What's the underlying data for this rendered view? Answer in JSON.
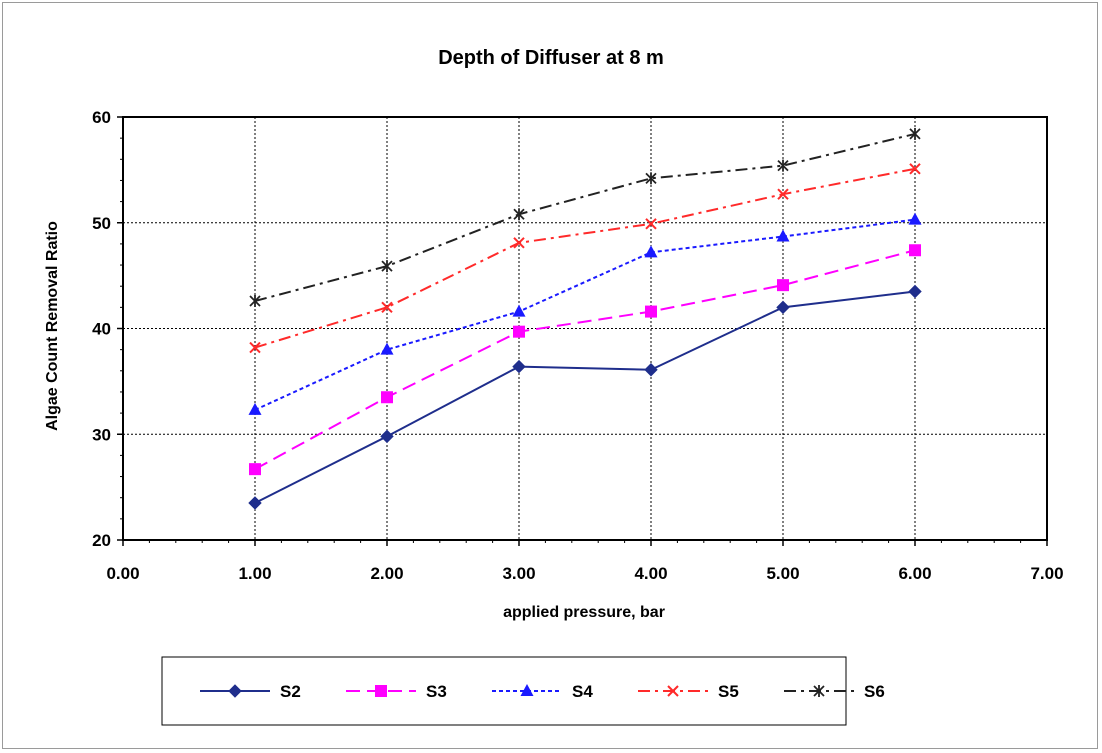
{
  "chart_data": {
    "type": "line",
    "title": "Depth of Diffuser at 8  m",
    "xlabel": "applied pressure, bar",
    "ylabel": "Algae Count Removal Ratio",
    "xlim": [
      0,
      7
    ],
    "ylim": [
      20,
      60
    ],
    "x_ticks": [
      0,
      1,
      2,
      3,
      4,
      5,
      6,
      7
    ],
    "x_tick_labels": [
      "0.00",
      "1.00",
      "2.00",
      "3.00",
      "4.00",
      "5.00",
      "6.00",
      "7.00"
    ],
    "y_ticks": [
      20,
      30,
      40,
      50,
      60
    ],
    "y_tick_labels": [
      "20",
      "30",
      "40",
      "50",
      "60"
    ],
    "grid": true,
    "legend_position": "bottom",
    "x": [
      1,
      2,
      3,
      4,
      5,
      6
    ],
    "series": [
      {
        "name": "S2",
        "values": [
          23.5,
          29.8,
          36.4,
          36.1,
          42.0,
          43.5
        ],
        "color": "#1f2e8c",
        "dash": "solid",
        "marker": "diamond"
      },
      {
        "name": "S3",
        "values": [
          26.7,
          33.5,
          39.7,
          41.6,
          44.1,
          47.4
        ],
        "color": "#ff00ff",
        "dash": "long-dash",
        "marker": "square"
      },
      {
        "name": "S4",
        "values": [
          32.3,
          38.0,
          41.6,
          47.2,
          48.7,
          50.3
        ],
        "color": "#1a1aff",
        "dash": "dotted",
        "marker": "triangle"
      },
      {
        "name": "S5",
        "values": [
          38.2,
          42.0,
          48.1,
          49.9,
          52.7,
          55.1
        ],
        "color": "#ff2a2a",
        "dash": "dash-dot",
        "marker": "x"
      },
      {
        "name": "S6",
        "values": [
          42.6,
          45.9,
          50.8,
          54.2,
          55.4,
          58.4
        ],
        "color": "#222222",
        "dash": "dash-dot",
        "marker": "star"
      }
    ]
  }
}
